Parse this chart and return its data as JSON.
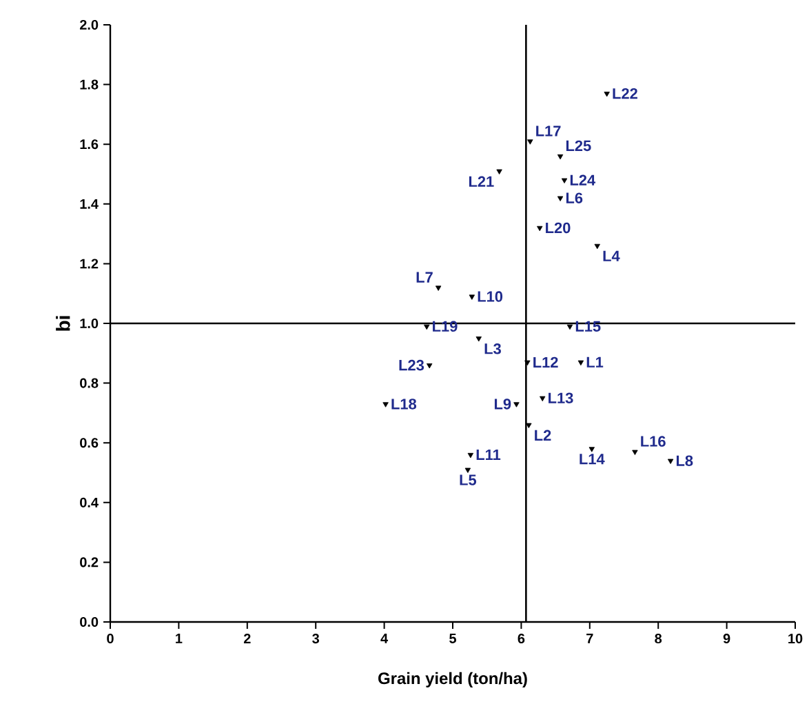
{
  "chart_data": {
    "type": "scatter",
    "xlabel": "Grain yield (ton/ha)",
    "ylabel": "bi",
    "x": [
      6.87,
      6.11,
      5.38,
      7.11,
      5.22,
      6.57,
      4.79,
      8.18,
      5.93,
      5.28,
      5.26,
      6.09,
      6.31,
      7.03,
      6.71,
      7.66,
      6.13,
      4.02,
      4.62,
      6.27,
      5.68,
      7.25,
      4.66,
      6.63,
      6.57
    ],
    "values": [
      0.87,
      0.66,
      0.95,
      1.26,
      0.51,
      1.42,
      1.12,
      0.54,
      0.73,
      1.09,
      0.56,
      0.87,
      0.75,
      0.58,
      0.99,
      0.57,
      1.61,
      0.73,
      0.99,
      1.32,
      1.51,
      1.77,
      0.86,
      1.48,
      1.56
    ],
    "color": "#000000",
    "marker": "triangle",
    "grid": false,
    "xlim": [
      0,
      10
    ],
    "ylim": [
      0,
      2
    ],
    "xticks": [
      0,
      1,
      2,
      3,
      4,
      5,
      6,
      7,
      8,
      9,
      10
    ],
    "yticks": [
      {
        "value": 0,
        "label": "0.0"
      },
      {
        "value": 0.2,
        "label": "0.2"
      },
      {
        "value": 0.4,
        "label": "0.4"
      },
      {
        "value": 0.6,
        "label": "0.6"
      },
      {
        "value": 0.8,
        "label": "0.8"
      },
      {
        "value": 1.0,
        "label": "1.0"
      },
      {
        "value": 1.2,
        "label": "1.2"
      },
      {
        "value": 1.4,
        "label": "1.4"
      },
      {
        "value": 1.6,
        "label": "1.6"
      },
      {
        "value": 1.8,
        "label": "1.8"
      },
      {
        "value": 2.0,
        "label": "2.0"
      }
    ],
    "ref_lines": [
      {
        "axis": "x",
        "value": 6.07,
        "color": "#000000"
      },
      {
        "axis": "y",
        "value": 1.0,
        "color": "#000000"
      }
    ],
    "annotations": [
      {
        "text": "L1",
        "x": 6.87,
        "y": 0.87
      },
      {
        "text": "L2",
        "x": 6.11,
        "y": 0.66
      },
      {
        "text": "L3",
        "x": 5.38,
        "y": 0.95
      },
      {
        "text": "L4",
        "x": 7.11,
        "y": 1.26
      },
      {
        "text": "L5",
        "x": 5.22,
        "y": 0.51
      },
      {
        "text": "L6",
        "x": 6.57,
        "y": 1.42
      },
      {
        "text": "L7",
        "x": 4.79,
        "y": 1.12
      },
      {
        "text": "L8",
        "x": 8.18,
        "y": 0.54
      },
      {
        "text": "L9",
        "x": 5.93,
        "y": 0.73
      },
      {
        "text": "L10",
        "x": 5.28,
        "y": 1.09
      },
      {
        "text": "L11",
        "x": 5.26,
        "y": 0.56
      },
      {
        "text": "L12",
        "x": 6.09,
        "y": 0.87
      },
      {
        "text": "L13",
        "x": 6.31,
        "y": 0.75
      },
      {
        "text": "L14",
        "x": 7.03,
        "y": 0.58
      },
      {
        "text": "L15",
        "x": 6.71,
        "y": 0.99
      },
      {
        "text": "L16",
        "x": 7.66,
        "y": 0.57
      },
      {
        "text": "L17",
        "x": 6.13,
        "y": 1.61
      },
      {
        "text": "L18",
        "x": 4.02,
        "y": 0.73
      },
      {
        "text": "L19",
        "x": 4.62,
        "y": 0.99
      },
      {
        "text": "L20",
        "x": 6.27,
        "y": 1.32
      },
      {
        "text": "L21",
        "x": 5.68,
        "y": 1.51
      },
      {
        "text": "L22",
        "x": 7.25,
        "y": 1.77
      },
      {
        "text": "L23",
        "x": 4.66,
        "y": 0.86
      },
      {
        "text": "L24",
        "x": 6.63,
        "y": 1.48
      },
      {
        "text": "L25",
        "x": 6.57,
        "y": 1.56
      }
    ]
  }
}
